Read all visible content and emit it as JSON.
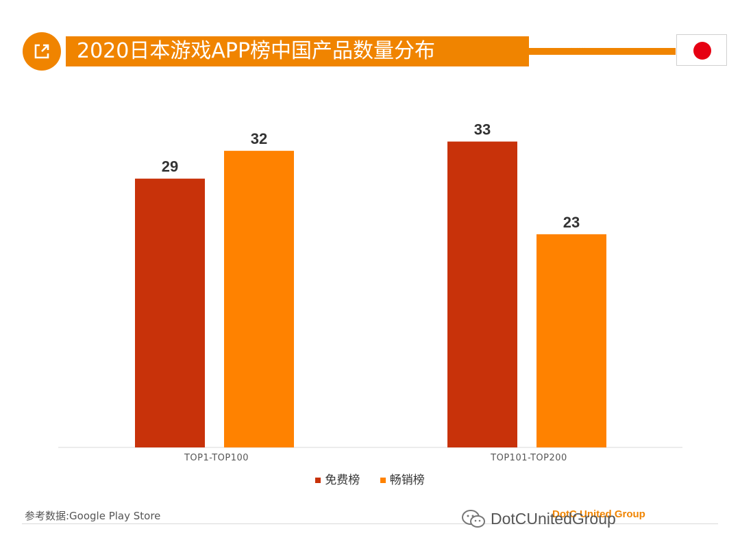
{
  "header": {
    "title": "2020日本游戏APP榜中国产品数量分布",
    "chevrons": "»»»",
    "icon": "external-link-icon",
    "flag": "japan-flag"
  },
  "chart_data": {
    "type": "bar",
    "title": "",
    "categories": [
      "TOP1-TOP100",
      "TOP101-TOP200"
    ],
    "series": [
      {
        "name": "免费榜",
        "values": [
          29,
          33
        ],
        "color": "#c8320a"
      },
      {
        "name": "畅销榜",
        "values": [
          32,
          23
        ],
        "color": "#ff8200"
      }
    ],
    "ylim": [
      0,
      36
    ],
    "grid": false,
    "legend_position": "bottom",
    "data_labels": true
  },
  "footer": {
    "source": "参考数据:Google Play Store",
    "brand": "DotC United Group",
    "watermark": "DotCUnitedGroup",
    "wechat_icon": "wechat-icon"
  },
  "colors": {
    "accent": "#f08400",
    "dark_bar": "#c8320a",
    "light_bar": "#ff8200"
  }
}
